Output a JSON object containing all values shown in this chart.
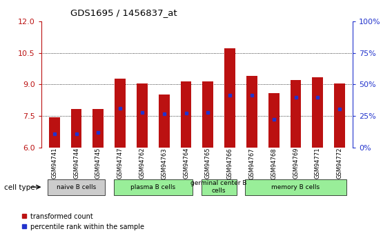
{
  "title": "GDS1695 / 1456837_at",
  "samples": [
    "GSM94741",
    "GSM94744",
    "GSM94745",
    "GSM94747",
    "GSM94762",
    "GSM94763",
    "GSM94764",
    "GSM94765",
    "GSM94766",
    "GSM94767",
    "GSM94768",
    "GSM94769",
    "GSM94771",
    "GSM94772"
  ],
  "bar_values": [
    7.45,
    7.82,
    7.82,
    9.28,
    9.05,
    8.52,
    9.15,
    9.15,
    10.72,
    9.42,
    8.6,
    9.22,
    9.35,
    9.05
  ],
  "blue_marker_values": [
    6.65,
    6.65,
    6.73,
    7.88,
    7.68,
    7.6,
    7.65,
    7.68,
    8.48,
    8.48,
    7.35,
    8.4,
    8.4,
    7.85
  ],
  "ymin": 6,
  "ymax": 12,
  "yticks_left": [
    6,
    7.5,
    9,
    10.5,
    12
  ],
  "yticks_right_vals": [
    6,
    7.5,
    9,
    10.5,
    12
  ],
  "yticks_right_labels": [
    "0%",
    "25%",
    "50%",
    "75%",
    "100%"
  ],
  "hgrid_lines": [
    7.5,
    9,
    10.5
  ],
  "bar_color": "#bb1111",
  "blue_color": "#2233cc",
  "group_defs": [
    {
      "start": 0,
      "end": 2,
      "label": "naive B cells",
      "color": "#cccccc"
    },
    {
      "start": 3,
      "end": 6,
      "label": "plasma B cells",
      "color": "#99ee99"
    },
    {
      "start": 7,
      "end": 8,
      "label": "germinal center B\ncells",
      "color": "#99ee99"
    },
    {
      "start": 9,
      "end": 13,
      "label": "memory B cells",
      "color": "#99ee99"
    }
  ],
  "cell_type_label": "cell type",
  "legend_labels": [
    "transformed count",
    "percentile rank within the sample"
  ]
}
